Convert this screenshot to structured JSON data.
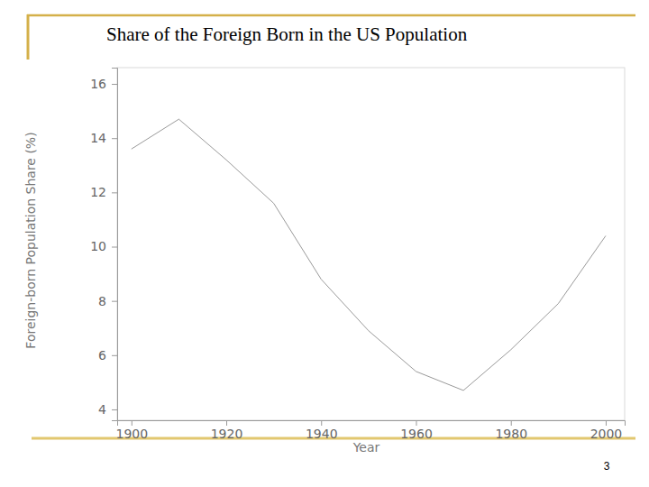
{
  "chart_data": {
    "type": "line",
    "title": "Share of the Foreign Born in the US Population",
    "x_label": "Year",
    "y_label": "Foreign-born Population Share (%)",
    "annotations": [
      "3"
    ],
    "x": [
      1900,
      1910,
      1920,
      1930,
      1940,
      1950,
      1960,
      1970,
      1980,
      1990,
      2000
    ],
    "values": [
      13.6,
      14.7,
      13.2,
      11.6,
      8.8,
      6.9,
      5.4,
      4.7,
      6.2,
      7.9,
      10.4
    ],
    "color": "#9a9a9a",
    "xlim": [
      1897,
      2004
    ],
    "xticks": [
      1900,
      1920,
      1940,
      1960,
      1980,
      2000
    ],
    "ylim": [
      3.6,
      16.6
    ],
    "yticks": [
      4,
      6,
      8,
      10,
      12,
      14,
      16
    ],
    "grid": false
  }
}
